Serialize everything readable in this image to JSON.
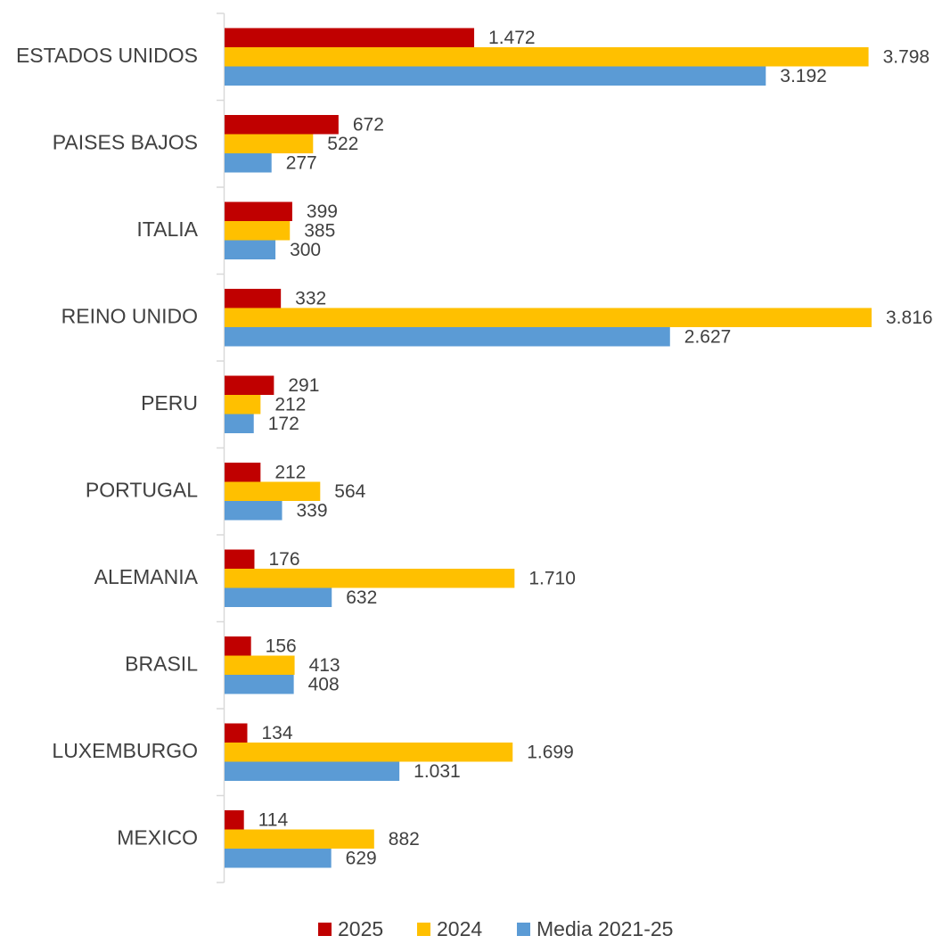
{
  "chart_data": {
    "type": "bar",
    "orientation": "horizontal",
    "categories": [
      "ESTADOS UNIDOS",
      "PAISES BAJOS",
      "ITALIA",
      "REINO UNIDO",
      "PERU",
      "PORTUGAL",
      "ALEMANIA",
      "BRASIL",
      "LUXEMBURGO",
      "MEXICO"
    ],
    "series": [
      {
        "name": "2025",
        "color": "#c00000",
        "values": [
          1472,
          672,
          399,
          332,
          291,
          212,
          176,
          156,
          134,
          114
        ],
        "value_labels": [
          "1.472",
          "672",
          "399",
          "332",
          "291",
          "212",
          "176",
          "156",
          "134",
          "114"
        ]
      },
      {
        "name": "2024",
        "color": "#ffc000",
        "values": [
          3798,
          522,
          385,
          3816,
          212,
          564,
          1710,
          413,
          1699,
          882
        ],
        "value_labels": [
          "3.798",
          "522",
          "385",
          "3.816",
          "212",
          "564",
          "1.710",
          "413",
          "1.699",
          "882"
        ]
      },
      {
        "name": "Media 2021-25",
        "color": "#5b9bd5",
        "values": [
          3192,
          277,
          300,
          2627,
          172,
          339,
          632,
          408,
          1031,
          629
        ],
        "value_labels": [
          "3.192",
          "277",
          "300",
          "2.627",
          "172",
          "339",
          "632",
          "408",
          "1.031",
          "629"
        ]
      }
    ],
    "legend": "bottom"
  }
}
